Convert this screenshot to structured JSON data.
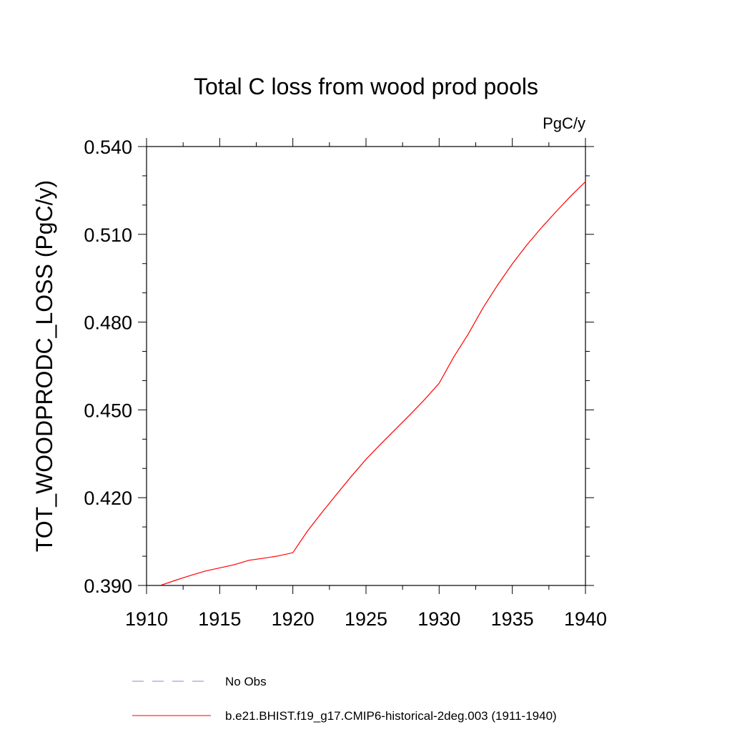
{
  "chart_data": {
    "type": "line",
    "title": "Total C loss from wood prod pools",
    "units_label": "PgC/y",
    "ylabel": "TOT_WOODPRODC_LOSS  (PgC/y)",
    "xlabel": "",
    "xlim": [
      1910,
      1940
    ],
    "ylim": [
      0.39,
      0.54
    ],
    "x_ticks": [
      "1910",
      "1915",
      "1920",
      "1925",
      "1930",
      "1935",
      "1940"
    ],
    "y_ticks": [
      "0.390",
      "0.420",
      "0.450",
      "0.480",
      "0.510",
      "0.540"
    ],
    "grid": false,
    "legend_position": "bottom",
    "series": [
      {
        "name": "b.e21.BHIST.f19_g17.CMIP6-historical-2deg.003 (1911-1940)",
        "color": "#ff0000",
        "style": "solid",
        "x": [
          1911,
          1912,
          1913,
          1914,
          1915,
          1916,
          1917,
          1918,
          1919,
          1920,
          1921,
          1922,
          1923,
          1924,
          1925,
          1926,
          1927,
          1928,
          1929,
          1930,
          1931,
          1932,
          1933,
          1934,
          1935,
          1936,
          1937,
          1938,
          1939,
          1940
        ],
        "values": [
          0.3901,
          0.3918,
          0.3934,
          0.3949,
          0.396,
          0.3971,
          0.3986,
          0.3993,
          0.4001,
          0.4012,
          0.4086,
          0.415,
          0.4212,
          0.4273,
          0.4331,
          0.4383,
          0.4433,
          0.4483,
          0.4535,
          0.4591,
          0.4681,
          0.476,
          0.4849,
          0.4927,
          0.4999,
          0.5064,
          0.5123,
          0.5178,
          0.5231,
          0.528
        ]
      },
      {
        "name": "No Obs",
        "color": "#8888cc",
        "style": "dashed",
        "x": [],
        "values": []
      }
    ]
  }
}
